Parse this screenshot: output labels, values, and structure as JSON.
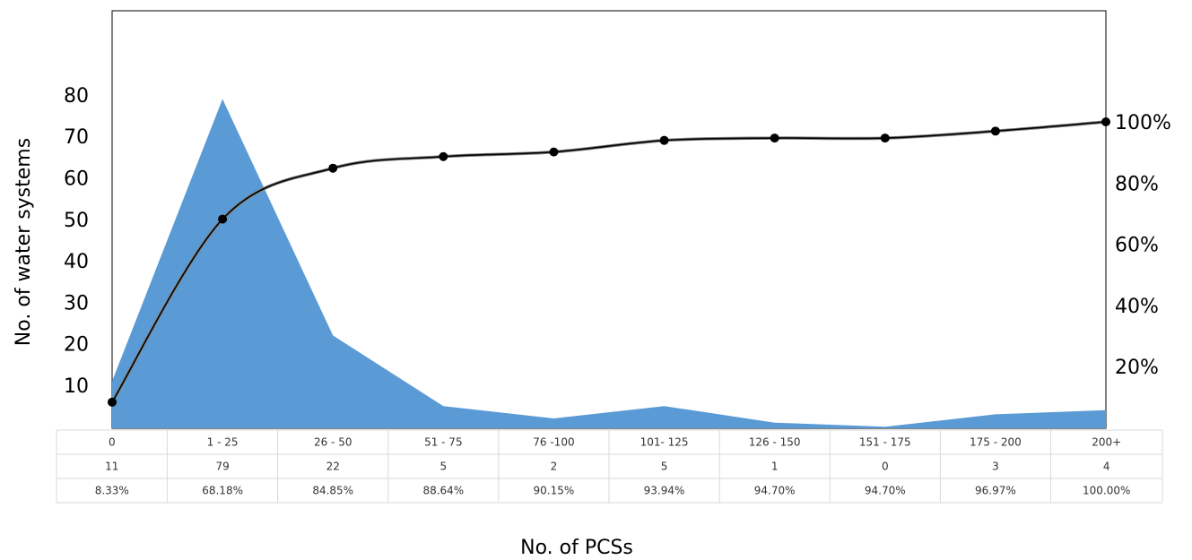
{
  "chart_data": {
    "type": "area",
    "categories": [
      "0",
      "1 - 25",
      "26 - 50",
      "51 - 75",
      "76 -100",
      "101- 125",
      "126 - 150",
      "151 - 175",
      "175 - 200",
      "200+"
    ],
    "series": [
      {
        "values": [
          11,
          79,
          22,
          5,
          2,
          5,
          1,
          0,
          3,
          4
        ],
        "color": "#5B9BD5",
        "axis": "left",
        "style": "area"
      },
      {
        "values": [
          8.33,
          68.18,
          84.85,
          88.64,
          90.15,
          93.94,
          94.7,
          94.7,
          96.97,
          100.0
        ],
        "color": "#000000",
        "axis": "right",
        "style": "line-with-markers",
        "unit": "%"
      }
    ],
    "table_rows": [
      [
        "0",
        "1 - 25",
        "26 - 50",
        "51 - 75",
        "76 -100",
        "101- 125",
        "126 - 150",
        "151 - 175",
        "175 - 200",
        "200+"
      ],
      [
        "11",
        "79",
        "22",
        "5",
        "2",
        "5",
        "1",
        "0",
        "3",
        "4"
      ],
      [
        "8.33%",
        "68.18%",
        "84.85%",
        "88.64%",
        "90.15%",
        "93.94%",
        "94.70%",
        "94.70%",
        "96.97%",
        "100.00%"
      ]
    ],
    "ylabel": "No. of water systems",
    "xlabel": "No. of PCSs",
    "y_ticks": [
      10,
      20,
      30,
      40,
      50,
      60,
      70,
      80
    ],
    "y2_ticks": [
      "20%",
      "40%",
      "60%",
      "80%",
      "100%"
    ],
    "grid": false
  }
}
